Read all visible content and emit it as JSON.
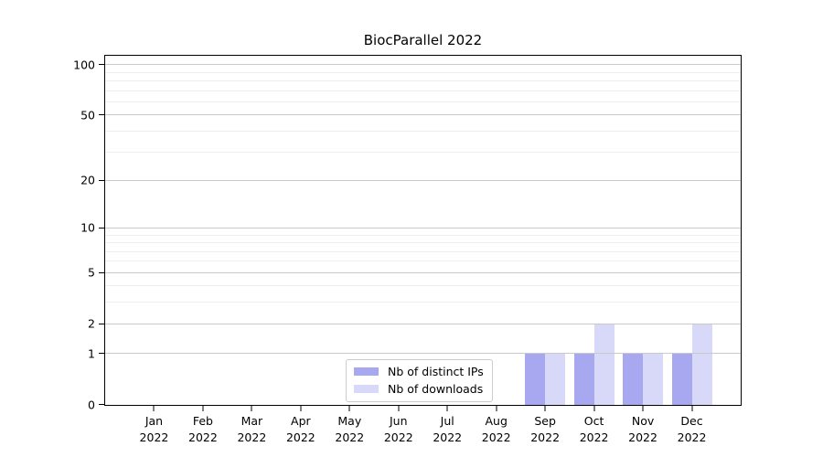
{
  "chart_data": {
    "type": "bar",
    "title": "BiocParallel 2022",
    "categories": [
      {
        "month": "Jan",
        "year": "2022"
      },
      {
        "month": "Feb",
        "year": "2022"
      },
      {
        "month": "Mar",
        "year": "2022"
      },
      {
        "month": "Apr",
        "year": "2022"
      },
      {
        "month": "May",
        "year": "2022"
      },
      {
        "month": "Jun",
        "year": "2022"
      },
      {
        "month": "Jul",
        "year": "2022"
      },
      {
        "month": "Aug",
        "year": "2022"
      },
      {
        "month": "Sep",
        "year": "2022"
      },
      {
        "month": "Oct",
        "year": "2022"
      },
      {
        "month": "Nov",
        "year": "2022"
      },
      {
        "month": "Dec",
        "year": "2022"
      }
    ],
    "series": [
      {
        "name": "Nb of distinct IPs",
        "color": "#a8a8f0",
        "values": [
          0,
          0,
          0,
          0,
          0,
          0,
          0,
          0,
          1,
          1,
          1,
          1
        ]
      },
      {
        "name": "Nb of downloads",
        "color": "#d8d8f8",
        "values": [
          0,
          0,
          0,
          0,
          0,
          0,
          0,
          0,
          1,
          2,
          1,
          2
        ]
      }
    ],
    "yscale": "log1p",
    "ylim": [
      0,
      114
    ],
    "yticks": [
      0,
      1,
      2,
      5,
      10,
      20,
      50,
      100
    ],
    "minor_yticks": [
      3,
      4,
      6,
      7,
      8,
      9,
      30,
      40,
      60,
      70,
      80,
      90
    ],
    "grid": "horizontal",
    "grid_major_color": "#c9c9c9",
    "grid_minor_color": "#eeeeee",
    "axis_color": "#000000",
    "legend_position": "inside-bottom-center"
  }
}
